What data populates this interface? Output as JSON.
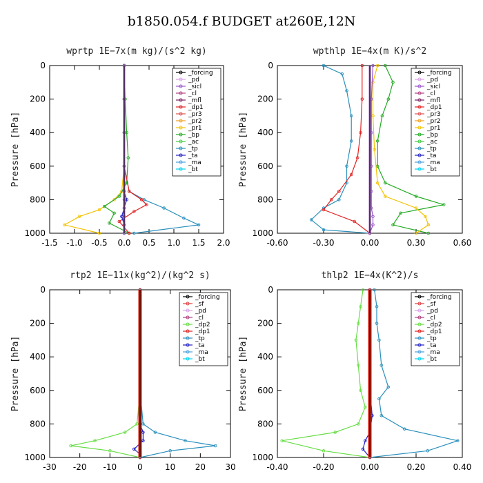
{
  "title": "b1850.054.f  BUDGET at260E,12N",
  "chart_data": [
    {
      "type": "line",
      "title": "wprtp",
      "units": "1E−7x(m kg)/(s^2 kg)",
      "ylabel": "Pressure [hPa]",
      "xlim": [
        -1.5,
        2.0
      ],
      "ylim": [
        1000,
        0
      ],
      "xticks": [
        "-1.5",
        "-1.0",
        "-0.5",
        "0.0",
        "0.5",
        "1.0",
        "1.5",
        "2.0"
      ],
      "xtick_values": [
        -1.5,
        -1.0,
        -0.5,
        0.0,
        0.5,
        1.0,
        1.5,
        2.0
      ],
      "yticks": [
        "0",
        "200",
        "400",
        "600",
        "800",
        "1000"
      ],
      "ytick_values": [
        0,
        200,
        400,
        600,
        800,
        1000
      ],
      "legend_position": "top-right",
      "legend": [
        "_forcing",
        "_pd",
        "_sicl",
        "_cl",
        "_mfl",
        "_dp1",
        "_pr3",
        "_pr2",
        "_pr1",
        "_bp",
        "_ac",
        "_tp",
        "_ta",
        "_ma",
        "_bt"
      ],
      "series": [
        {
          "name": "_pr1",
          "color": "#f2c200",
          "x": [
            0,
            0,
            0,
            0,
            -0.05,
            -0.2,
            -0.5,
            -0.9,
            -1.2,
            -0.5
          ],
          "y": [
            0,
            200,
            400,
            600,
            750,
            800,
            860,
            900,
            950,
            1000
          ]
        },
        {
          "name": "_bp",
          "color": "#22aa22",
          "x": [
            0,
            0.02,
            0.05,
            0.08,
            0.05,
            -0.1,
            -0.4,
            -0.2,
            -0.3,
            0.1
          ],
          "y": [
            0,
            200,
            400,
            550,
            700,
            780,
            840,
            880,
            940,
            1000
          ]
        },
        {
          "name": "_tp",
          "color": "#2a8fbd",
          "x": [
            0,
            0,
            0,
            0,
            0.1,
            0.4,
            0.8,
            1.2,
            1.5,
            0.2
          ],
          "y": [
            0,
            200,
            400,
            600,
            750,
            800,
            850,
            910,
            950,
            1000
          ]
        },
        {
          "name": "_dp1",
          "color": "#e02020",
          "x": [
            0,
            0,
            0,
            0,
            0.1,
            0.35,
            0.45,
            0.2,
            -0.1,
            0.1
          ],
          "y": [
            0,
            200,
            400,
            600,
            750,
            800,
            830,
            870,
            930,
            1000
          ]
        },
        {
          "name": "_ta",
          "color": "#2020c0",
          "x": [
            0,
            0,
            0,
            0,
            0,
            0.05,
            0,
            -0.05,
            0,
            0
          ],
          "y": [
            0,
            200,
            400,
            600,
            750,
            800,
            850,
            900,
            950,
            1000
          ]
        },
        {
          "name": "_ac",
          "color": "#9955cc",
          "x": [
            0,
            0,
            0,
            0,
            0,
            0,
            0,
            0,
            0,
            0
          ],
          "y": [
            0,
            200,
            400,
            600,
            750,
            800,
            850,
            900,
            950,
            1000
          ]
        }
      ]
    },
    {
      "type": "line",
      "title": "wpthlp",
      "units": "1E−4x(m K)/s^2",
      "ylabel": "Pressure [hPa]",
      "xlim": [
        -0.6,
        0.6
      ],
      "ylim": [
        1000,
        0
      ],
      "xticks": [
        "-0.60",
        "-0.30",
        "0.00",
        "0.30",
        "0.60"
      ],
      "xtick_values": [
        -0.6,
        -0.3,
        0.0,
        0.3,
        0.6
      ],
      "yticks": [
        "0",
        "200",
        "400",
        "600",
        "800",
        "1000"
      ],
      "ytick_values": [
        0,
        200,
        400,
        600,
        800,
        1000
      ],
      "legend_position": "top-right",
      "legend": [
        "_forcing",
        "_pd",
        "_sicl",
        "_cl",
        "_mfl",
        "_dp1",
        "_pr3",
        "_pr2",
        "_pr1",
        "_bp",
        "_ac",
        "_tp",
        "_ta",
        "_ma",
        "_bt"
      ],
      "series": [
        {
          "name": "_tp",
          "color": "#2a8fbd",
          "x": [
            -0.3,
            -0.18,
            -0.15,
            -0.12,
            -0.12,
            -0.15,
            -0.15,
            -0.2,
            -0.3,
            -0.38,
            -0.3,
            0
          ],
          "y": [
            0,
            50,
            150,
            300,
            450,
            600,
            700,
            800,
            850,
            920,
            980,
            1000
          ]
        },
        {
          "name": "_dp1",
          "color": "#e02020",
          "x": [
            -0.05,
            -0.05,
            -0.06,
            -0.08,
            -0.12,
            -0.2,
            -0.25,
            -0.3,
            -0.1,
            0
          ],
          "y": [
            0,
            200,
            400,
            550,
            650,
            750,
            800,
            860,
            930,
            1000
          ]
        },
        {
          "name": "_bp",
          "color": "#22aa22",
          "x": [
            0.1,
            0.15,
            0.12,
            0.08,
            0.05,
            0.05,
            0.1,
            0.3,
            0.48,
            0.2,
            0.15,
            0.38
          ],
          "y": [
            0,
            100,
            200,
            300,
            450,
            600,
            700,
            780,
            830,
            880,
            950,
            1000
          ]
        },
        {
          "name": "_pr1",
          "color": "#f2c200",
          "x": [
            0.05,
            0.02,
            0.02,
            0.03,
            0.05,
            0.1,
            0.3,
            0.36,
            0.38,
            0.3
          ],
          "y": [
            0,
            100,
            300,
            500,
            700,
            780,
            850,
            900,
            950,
            1000
          ]
        },
        {
          "name": "_ac",
          "color": "#9955cc",
          "x": [
            0.02,
            0.01,
            0.01,
            0.01,
            0.01,
            0.01,
            0.02,
            0.02,
            0
          ],
          "y": [
            0,
            200,
            400,
            600,
            750,
            850,
            900,
            950,
            1000
          ]
        }
      ]
    },
    {
      "type": "line",
      "title": "rtp2",
      "units": "1E−11x(kg^2)/(kg^2 s)",
      "ylabel": "Pressure [hPa]",
      "xlim": [
        -30,
        30
      ],
      "ylim": [
        1000,
        0
      ],
      "xticks": [
        "-30",
        "-20",
        "-10",
        "0",
        "10",
        "20",
        "30"
      ],
      "xtick_values": [
        -30,
        -20,
        -10,
        0,
        10,
        20,
        30
      ],
      "yticks": [
        "0",
        "200",
        "400",
        "600",
        "800",
        "1000"
      ],
      "ytick_values": [
        0,
        200,
        400,
        600,
        800,
        1000
      ],
      "legend_position": "top-right",
      "legend": [
        "_forcing",
        "_sf",
        "_pd",
        "_cl",
        "_dp2",
        "_dp1",
        "_tp",
        "_ta",
        "_ma",
        "_bt"
      ],
      "series": [
        {
          "name": "_dp1",
          "color": "#66dd44",
          "x": [
            0,
            0,
            0,
            -1,
            -5,
            -15,
            -23,
            -10,
            0
          ],
          "y": [
            0,
            200,
            600,
            800,
            850,
            900,
            930,
            960,
            1000
          ]
        },
        {
          "name": "_tp",
          "color": "#2a8fbd",
          "x": [
            0,
            0,
            0,
            1,
            5,
            15,
            25,
            10,
            0
          ],
          "y": [
            0,
            200,
            600,
            800,
            850,
            900,
            930,
            960,
            1000
          ]
        },
        {
          "name": "_ta",
          "color": "#2020c0",
          "x": [
            0,
            0,
            0,
            0,
            1,
            1,
            -2,
            0,
            0
          ],
          "y": [
            0,
            200,
            600,
            800,
            850,
            900,
            950,
            980,
            1000
          ]
        },
        {
          "name": "_forcing",
          "color": "#e02020",
          "x": [
            0,
            0,
            0,
            0,
            0,
            0,
            0,
            0,
            0,
            0,
            0
          ],
          "y": [
            0,
            100,
            200,
            300,
            400,
            500,
            600,
            700,
            800,
            900,
            1000
          ]
        }
      ]
    },
    {
      "type": "line",
      "title": "thlp2",
      "units": "1E−4x(K^2)/s",
      "ylabel": "Pressure [hPa]",
      "xlim": [
        -0.4,
        0.4
      ],
      "ylim": [
        1000,
        0
      ],
      "xticks": [
        "-0.40",
        "-0.20",
        "0.00",
        "0.20",
        "0.40"
      ],
      "xtick_values": [
        -0.4,
        -0.2,
        0.0,
        0.2,
        0.4
      ],
      "yticks": [
        "0",
        "200",
        "400",
        "600",
        "800",
        "1000"
      ],
      "ytick_values": [
        0,
        200,
        400,
        600,
        800,
        1000
      ],
      "legend_position": "top-right",
      "legend": [
        "_forcing",
        "_sf",
        "_pd",
        "_cl",
        "_dp2",
        "_dp1",
        "_tp",
        "_ta",
        "_ma",
        "_bt"
      ],
      "series": [
        {
          "name": "_dp1",
          "color": "#66dd44",
          "x": [
            -0.03,
            -0.04,
            -0.05,
            -0.06,
            -0.05,
            -0.04,
            -0.02,
            -0.05,
            -0.15,
            -0.38,
            -0.2,
            0
          ],
          "y": [
            0,
            100,
            200,
            300,
            450,
            600,
            700,
            800,
            850,
            900,
            960,
            1000
          ]
        },
        {
          "name": "_tp",
          "color": "#2a8fbd",
          "x": [
            0.02,
            0.03,
            0.03,
            0.04,
            0.05,
            0.08,
            0.04,
            0.05,
            0.15,
            0.38,
            0.25,
            0
          ],
          "y": [
            0,
            100,
            200,
            300,
            450,
            580,
            650,
            750,
            830,
            900,
            960,
            1000
          ]
        },
        {
          "name": "_ta",
          "color": "#2020c0",
          "x": [
            0,
            0,
            0,
            0,
            0.01,
            0,
            -0.02,
            -0.03,
            0
          ],
          "y": [
            0,
            200,
            400,
            600,
            750,
            850,
            900,
            950,
            1000
          ]
        },
        {
          "name": "_forcing",
          "color": "#e02020",
          "x": [
            0,
            0,
            0,
            0,
            0,
            0,
            0,
            0,
            0,
            0,
            0
          ],
          "y": [
            0,
            100,
            200,
            300,
            400,
            500,
            600,
            700,
            800,
            900,
            1000
          ]
        }
      ]
    }
  ]
}
